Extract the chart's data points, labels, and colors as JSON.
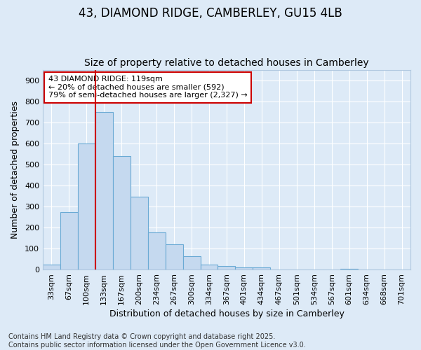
{
  "title1": "43, DIAMOND RIDGE, CAMBERLEY, GU15 4LB",
  "title2": "Size of property relative to detached houses in Camberley",
  "xlabel": "Distribution of detached houses by size in Camberley",
  "ylabel": "Number of detached properties",
  "categories": [
    "33sqm",
    "67sqm",
    "100sqm",
    "133sqm",
    "167sqm",
    "200sqm",
    "234sqm",
    "267sqm",
    "300sqm",
    "334sqm",
    "367sqm",
    "401sqm",
    "434sqm",
    "467sqm",
    "501sqm",
    "534sqm",
    "567sqm",
    "601sqm",
    "634sqm",
    "668sqm",
    "701sqm"
  ],
  "values": [
    25,
    275,
    600,
    750,
    540,
    345,
    178,
    120,
    65,
    25,
    18,
    10,
    10,
    0,
    0,
    0,
    0,
    5,
    0,
    0,
    0
  ],
  "bar_color": "#c5d9ef",
  "bar_edge_color": "#6aaad4",
  "vline_color": "#cc0000",
  "vline_pos": 2.5,
  "annotation_line1": "43 DIAMOND RIDGE: 119sqm",
  "annotation_line2": "← 20% of detached houses are smaller (592)",
  "annotation_line3": "79% of semi-detached houses are larger (2,327) →",
  "annotation_box_color": "#cc0000",
  "annotation_box_facecolor": "white",
  "background_color": "#ddeaf7",
  "plot_bg_color": "#ddeaf7",
  "grid_color": "white",
  "footer_text": "Contains HM Land Registry data © Crown copyright and database right 2025.\nContains public sector information licensed under the Open Government Licence v3.0.",
  "ylim": [
    0,
    950
  ],
  "yticks": [
    0,
    100,
    200,
    300,
    400,
    500,
    600,
    700,
    800,
    900
  ],
  "title1_fontsize": 12,
  "title2_fontsize": 10,
  "axis_label_fontsize": 9,
  "tick_fontsize": 8,
  "footer_fontsize": 7,
  "annot_fontsize": 8
}
